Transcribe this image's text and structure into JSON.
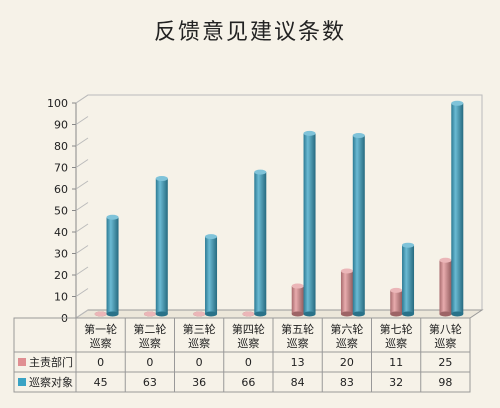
{
  "chart_data": {
    "type": "bar",
    "title": "反馈意见建议条数",
    "categories": [
      [
        "第一轮",
        "巡察"
      ],
      [
        "第二轮",
        "巡察"
      ],
      [
        "第三轮",
        "巡察"
      ],
      [
        "第四轮",
        "巡察"
      ],
      [
        "第五轮",
        "巡察"
      ],
      [
        "第六轮",
        "巡察"
      ],
      [
        "第七轮",
        "巡察"
      ],
      [
        "第八轮",
        "巡察"
      ]
    ],
    "series": [
      {
        "name": "主责部门",
        "color": "#e08f92",
        "values": [
          0,
          0,
          0,
          0,
          13,
          20,
          11,
          25
        ]
      },
      {
        "name": "巡察对象",
        "color": "#3aa3c4",
        "values": [
          45,
          63,
          36,
          66,
          84,
          83,
          32,
          98
        ]
      }
    ],
    "ylim": [
      0,
      100
    ],
    "yticks": [
      0,
      10,
      20,
      30,
      40,
      50,
      60,
      70,
      80,
      90,
      100
    ],
    "grid": false,
    "legend": "data-table-left",
    "bar_style": "3d-cylinder"
  }
}
